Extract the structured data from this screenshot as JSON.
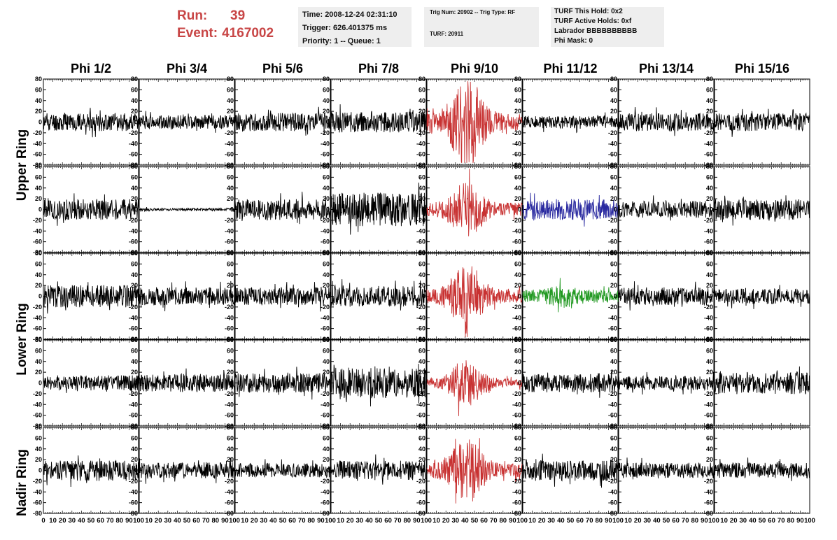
{
  "header": {
    "run_label": "Run:",
    "run_value": "39",
    "event_label": "Event:",
    "event_value": "4167002",
    "time_line": "Time: 2008-12-24 02:31:10",
    "trigger_line": "Trigger: 626.401375 ms",
    "priority_line": "Priority: 1 -- Queue: 1",
    "trig_line": "Trig Num: 20902 -- Trig Type: RF",
    "turf_line": "TURF: 20911",
    "turf_hold_line": "TURF This Hold: 0x2",
    "turf_active_line": "TURF Active Holds: 0xf",
    "labrador_line": "Labrador BBBBBBBBBB",
    "phi_mask_line": "Phi Mask: 0",
    "colors": {
      "run_text": "#c84646",
      "info_bg": "#eeeeee"
    }
  },
  "chart_data": {
    "type": "line",
    "title": "",
    "columns": [
      "Phi 1/2",
      "Phi 3/4",
      "Phi 5/6",
      "Phi 7/8",
      "Phi 9/10",
      "Phi 11/12",
      "Phi 13/14",
      "Phi 15/16"
    ],
    "ring_labels": [
      "Upper Ring",
      "Lower Ring",
      "Nadir Ring"
    ],
    "xlim": [
      0,
      100
    ],
    "ylim": [
      -80,
      80
    ],
    "x_ticks": [
      "0",
      "10",
      "20",
      "30",
      "40",
      "50",
      "60",
      "70",
      "80",
      "90",
      "100"
    ],
    "y_ticks": [
      "-80",
      "-60",
      "-40",
      "-20",
      "0",
      "20",
      "40",
      "60",
      "80"
    ],
    "panels": [
      [
        {
          "color": "#000000",
          "amp": 13,
          "burst": 0,
          "seed": 11
        },
        {
          "color": "#000000",
          "amp": 10,
          "burst": 0,
          "seed": 12
        },
        {
          "color": "#000000",
          "amp": 13,
          "burst": 0,
          "seed": 13
        },
        {
          "color": "#000000",
          "amp": 15,
          "burst": 0,
          "seed": 14
        },
        {
          "color": "#c83232",
          "amp": 12,
          "burst": 55,
          "seed": 15
        },
        {
          "color": "#000000",
          "amp": 9,
          "burst": 0,
          "seed": 16
        },
        {
          "color": "#000000",
          "amp": 13,
          "burst": 0,
          "seed": 17
        },
        {
          "color": "#000000",
          "amp": 13,
          "burst": 0,
          "seed": 18
        }
      ],
      [
        {
          "color": "#000000",
          "amp": 15,
          "burst": 0,
          "seed": 21
        },
        {
          "color": "#000000",
          "amp": 2,
          "burst": 0,
          "seed": 22
        },
        {
          "color": "#000000",
          "amp": 15,
          "burst": 0,
          "seed": 23
        },
        {
          "color": "#000000",
          "amp": 24,
          "burst": 0,
          "seed": 24
        },
        {
          "color": "#c83232",
          "amp": 10,
          "burst": 30,
          "seed": 25
        },
        {
          "color": "#2a2aa0",
          "amp": 15,
          "burst": 0,
          "seed": 26
        },
        {
          "color": "#000000",
          "amp": 12,
          "burst": 0,
          "seed": 27
        },
        {
          "color": "#000000",
          "amp": 15,
          "burst": 0,
          "seed": 28
        }
      ],
      [
        {
          "color": "#000000",
          "amp": 16,
          "burst": 0,
          "seed": 31
        },
        {
          "color": "#000000",
          "amp": 13,
          "burst": 0,
          "seed": 32
        },
        {
          "color": "#000000",
          "amp": 13,
          "burst": 0,
          "seed": 33
        },
        {
          "color": "#000000",
          "amp": 15,
          "burst": 0,
          "seed": 34
        },
        {
          "color": "#c83232",
          "amp": 10,
          "burst": 38,
          "seed": 35
        },
        {
          "color": "#229922",
          "amp": 9,
          "burst": 8,
          "seed": 36
        },
        {
          "color": "#000000",
          "amp": 13,
          "burst": 0,
          "seed": 37
        },
        {
          "color": "#000000",
          "amp": 11,
          "burst": 0,
          "seed": 38
        }
      ],
      [
        {
          "color": "#000000",
          "amp": 11,
          "burst": 0,
          "seed": 41
        },
        {
          "color": "#000000",
          "amp": 13,
          "burst": 0,
          "seed": 42
        },
        {
          "color": "#000000",
          "amp": 14,
          "burst": 0,
          "seed": 43
        },
        {
          "color": "#000000",
          "amp": 22,
          "burst": 0,
          "seed": 44
        },
        {
          "color": "#c83232",
          "amp": 6,
          "burst": 30,
          "seed": 45
        },
        {
          "color": "#000000",
          "amp": 13,
          "burst": 0,
          "seed": 46
        },
        {
          "color": "#000000",
          "amp": 10,
          "burst": 0,
          "seed": 47
        },
        {
          "color": "#000000",
          "amp": 16,
          "burst": 0,
          "seed": 48
        }
      ],
      [
        {
          "color": "#000000",
          "amp": 15,
          "burst": 0,
          "seed": 51
        },
        {
          "color": "#000000",
          "amp": 12,
          "burst": 0,
          "seed": 52
        },
        {
          "color": "#000000",
          "amp": 10,
          "burst": 0,
          "seed": 53
        },
        {
          "color": "#000000",
          "amp": 14,
          "burst": 0,
          "seed": 54
        },
        {
          "color": "#c83232",
          "amp": 10,
          "burst": 35,
          "seed": 55
        },
        {
          "color": "#000000",
          "amp": 15,
          "burst": 0,
          "seed": 56
        },
        {
          "color": "#000000",
          "amp": 11,
          "burst": 0,
          "seed": 57
        },
        {
          "color": "#000000",
          "amp": 11,
          "burst": 0,
          "seed": 58
        }
      ]
    ]
  }
}
